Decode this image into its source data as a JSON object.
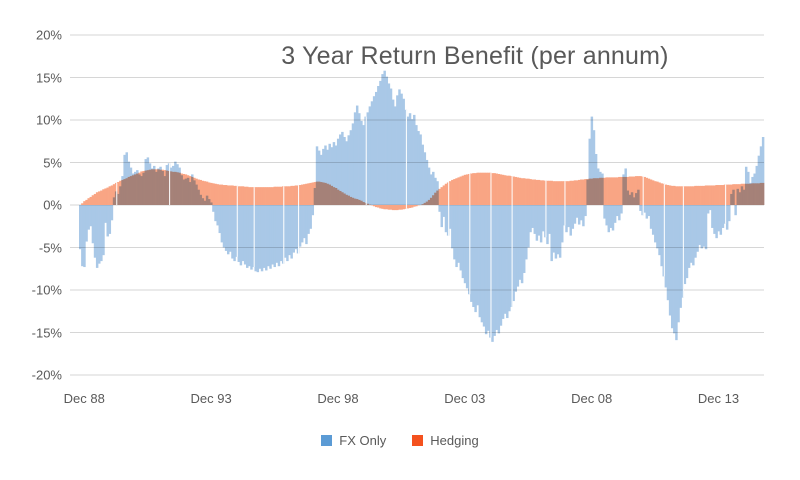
{
  "chart_data": {
    "type": "bar",
    "title": "3 Year Return Benefit (per annum)",
    "xlabel": "",
    "ylabel": "",
    "ylim": [
      -20,
      20
    ],
    "y_step": 5,
    "grid": true,
    "legend_position": "bottom",
    "y_tick_labels": [
      "20%",
      "15%",
      "10%",
      "5%",
      "0%",
      "-5%",
      "-10%",
      "-15%",
      "-20%"
    ],
    "y_tick_values": [
      20,
      15,
      10,
      5,
      0,
      -5,
      -10,
      -15,
      -20
    ],
    "x_tick_labels": [
      "Dec 88",
      "Dec 93",
      "Dec 98",
      "Dec 03",
      "Dec 08",
      "Dec 13"
    ],
    "x_tick_months": [
      2,
      62,
      122,
      182,
      242,
      302
    ],
    "resolution": "monthly",
    "start_month": "Oct 1988",
    "end_month": "Sep 2015",
    "grid_color": "#D6D6D6",
    "text_color": "#595959",
    "gap_months": [
      17,
      42,
      74,
      82,
      96,
      103,
      135,
      154,
      174,
      184,
      194,
      204,
      220,
      229,
      266,
      276,
      285,
      305
    ],
    "legend": [
      {
        "name": "FX Only",
        "color": "#5B9BD5"
      },
      {
        "name": "Hedging",
        "color": "#F4511E"
      }
    ],
    "series": [
      {
        "name": "FX Only",
        "color": "#A9C8E7",
        "values": [
          -5.2,
          -7.2,
          -7.3,
          -4.3,
          -2.9,
          -2.5,
          -4.5,
          -6.2,
          -7.4,
          -6.9,
          -6.6,
          -5.9,
          -2.1,
          -3.7,
          -3.4,
          -1.8,
          0.9,
          1.6,
          1.3,
          2.2,
          3.4,
          5.9,
          6.2,
          5.1,
          4.4,
          3.7,
          3.9,
          4.1,
          3.6,
          3.4,
          3.8,
          5.4,
          5.6,
          4.9,
          4.3,
          4.6,
          3.9,
          4.3,
          4.5,
          4.0,
          3.4,
          4.7,
          4.9,
          4.4,
          4.6,
          5.1,
          4.8,
          4.4,
          3.5,
          3.0,
          3.1,
          3.2,
          2.7,
          3.6,
          2.9,
          2.4,
          1.8,
          1.2,
          0.8,
          0.5,
          1.1,
          0.7,
          0.3,
          -0.8,
          -1.9,
          -2.4,
          -3.3,
          -4.4,
          -5.0,
          -5.4,
          -5.8,
          -5.5,
          -6.3,
          -6.6,
          -6.1,
          -6.7,
          -7.1,
          -6.6,
          -7.0,
          -7.4,
          -7.2,
          -7.6,
          -7.3,
          -7.8,
          -7.9,
          -7.5,
          -7.8,
          -7.4,
          -7.7,
          -7.2,
          -7.5,
          -7.0,
          -7.3,
          -6.8,
          -7.2,
          -6.6,
          -6.9,
          -6.2,
          -6.6,
          -5.9,
          -6.3,
          -5.6,
          -5.2,
          -5.7,
          -4.9,
          -4.4,
          -3.9,
          -4.6,
          -3.4,
          -2.8,
          -1.2,
          2.0,
          6.9,
          6.4,
          5.9,
          6.6,
          7.0,
          6.5,
          7.2,
          6.8,
          7.4,
          7.0,
          7.8,
          8.3,
          8.6,
          8.0,
          7.5,
          8.2,
          8.8,
          9.6,
          10.9,
          11.7,
          10.8,
          9.9,
          9.4,
          10.4,
          10.9,
          11.6,
          12.2,
          12.8,
          13.3,
          14.0,
          14.6,
          15.4,
          15.8,
          15.1,
          14.3,
          13.7,
          12.4,
          11.6,
          12.9,
          13.6,
          13.1,
          12.5,
          11.2,
          10.4,
          10.8,
          10.1,
          10.6,
          9.4,
          8.7,
          8.3,
          7.1,
          6.2,
          5.3,
          4.4,
          3.6,
          3.9,
          3.2,
          2.8,
          -0.8,
          -2.6,
          -1.4,
          -3.2,
          -3.6,
          -2.8,
          -5.1,
          -6.4,
          -7.3,
          -6.8,
          -7.7,
          -8.6,
          -9.2,
          -9.8,
          -10.5,
          -11.4,
          -12.0,
          -12.6,
          -11.8,
          -13.2,
          -13.8,
          -14.3,
          -15.2,
          -14.8,
          -15.6,
          -16.1,
          -15.4,
          -14.7,
          -15.1,
          -14.2,
          -13.4,
          -12.8,
          -13.3,
          -12.5,
          -12.0,
          -11.3,
          -10.2,
          -9.6,
          -8.8,
          -9.2,
          -8.0,
          -6.4,
          -5.0,
          -3.2,
          -2.7,
          -3.4,
          -4.2,
          -3.6,
          -4.4,
          -3.1,
          -3.8,
          -4.6,
          -3.4,
          -6.6,
          -5.6,
          -6.3,
          -5.8,
          -6.2,
          -4.4,
          -2.4,
          -3.2,
          -2.6,
          -3.6,
          -2.8,
          -2.2,
          -1.5,
          -2.3,
          -1.8,
          -2.5,
          -1.3,
          3.0,
          7.8,
          10.4,
          8.8,
          6.0,
          4.3,
          3.9,
          3.7,
          -1.6,
          -2.4,
          -3.2,
          -2.7,
          -3.0,
          -2.1,
          -1.3,
          -1.8,
          -1.0,
          3.6,
          4.3,
          1.7,
          1.2,
          1.5,
          0.9,
          1.4,
          1.8,
          -0.7,
          -1.2,
          -0.9,
          -1.6,
          -1.3,
          -2.8,
          -3.5,
          -4.4,
          -5.1,
          -5.9,
          -7.2,
          -8.4,
          -9.7,
          -11.2,
          -13.0,
          -14.5,
          -15.1,
          -15.9,
          -13.8,
          -12.1,
          -10.9,
          -9.3,
          -8.6,
          -7.4,
          -6.8,
          -7.1,
          -6.2,
          -5.5,
          -4.7,
          -5.1,
          -4.9,
          -5.2,
          -1.0,
          -0.6,
          -2.7,
          -3.4,
          -3.9,
          -3.1,
          -3.5,
          -2.7,
          -2.2,
          -2.9,
          -1.9,
          1.3,
          1.8,
          -1.2,
          1.9,
          1.5,
          2.2,
          1.8,
          4.5,
          3.9,
          2.6,
          3.3,
          3.7,
          4.6,
          5.8,
          6.9,
          8.0
        ]
      },
      {
        "name": "Hedging",
        "color": "#F9A584",
        "values": [
          0.0,
          0.2,
          0.45,
          0.6,
          0.8,
          0.95,
          1.15,
          1.3,
          1.5,
          1.6,
          1.7,
          1.85,
          1.95,
          2.05,
          2.2,
          2.3,
          2.45,
          2.6,
          2.7,
          2.85,
          2.95,
          3.05,
          3.15,
          3.3,
          3.4,
          3.5,
          3.6,
          3.7,
          3.8,
          3.95,
          4.0,
          4.05,
          4.1,
          4.15,
          4.2,
          4.2,
          4.2,
          4.2,
          4.15,
          4.15,
          4.1,
          4.05,
          4.0,
          3.95,
          3.9,
          3.9,
          3.85,
          3.8,
          3.7,
          3.65,
          3.6,
          3.5,
          3.4,
          3.3,
          3.2,
          3.1,
          3.0,
          2.95,
          2.85,
          2.8,
          2.75,
          2.65,
          2.6,
          2.55,
          2.5,
          2.45,
          2.4,
          2.4,
          2.35,
          2.35,
          2.3,
          2.3,
          2.3,
          2.25,
          2.25,
          2.2,
          2.2,
          2.2,
          2.15,
          2.15,
          2.1,
          2.1,
          2.1,
          2.1,
          2.1,
          2.1,
          2.1,
          2.1,
          2.1,
          2.1,
          2.1,
          2.1,
          2.15,
          2.15,
          2.15,
          2.15,
          2.2,
          2.2,
          2.2,
          2.2,
          2.25,
          2.25,
          2.3,
          2.3,
          2.35,
          2.4,
          2.45,
          2.5,
          2.55,
          2.6,
          2.65,
          2.7,
          2.75,
          2.75,
          2.7,
          2.65,
          2.6,
          2.5,
          2.4,
          2.25,
          2.1,
          2.0,
          1.8,
          1.65,
          1.5,
          1.35,
          1.2,
          1.1,
          0.95,
          0.85,
          0.75,
          0.7,
          0.6,
          0.5,
          0.35,
          0.25,
          0.15,
          0.05,
          -0.05,
          -0.15,
          -0.25,
          -0.3,
          -0.4,
          -0.45,
          -0.5,
          -0.5,
          -0.55,
          -0.55,
          -0.6,
          -0.6,
          -0.6,
          -0.55,
          -0.55,
          -0.5,
          -0.45,
          -0.4,
          -0.35,
          -0.3,
          -0.2,
          -0.15,
          -0.05,
          0.0,
          0.1,
          0.25,
          0.4,
          0.6,
          0.85,
          1.15,
          1.45,
          1.7,
          1.9,
          2.1,
          2.3,
          2.5,
          2.65,
          2.8,
          2.95,
          3.05,
          3.15,
          3.25,
          3.35,
          3.45,
          3.55,
          3.6,
          3.65,
          3.7,
          3.75,
          3.75,
          3.8,
          3.8,
          3.8,
          3.8,
          3.8,
          3.8,
          3.8,
          3.75,
          3.75,
          3.7,
          3.65,
          3.6,
          3.55,
          3.5,
          3.45,
          3.45,
          3.4,
          3.35,
          3.3,
          3.25,
          3.2,
          3.15,
          3.15,
          3.1,
          3.1,
          3.05,
          3.0,
          3.0,
          2.95,
          2.95,
          2.9,
          2.9,
          2.85,
          2.85,
          2.85,
          2.85,
          2.8,
          2.8,
          2.8,
          2.8,
          2.8,
          2.8,
          2.8,
          2.8,
          2.85,
          2.85,
          2.9,
          2.9,
          2.95,
          3.0,
          3.0,
          3.05,
          3.05,
          3.1,
          3.1,
          3.15,
          3.15,
          3.15,
          3.2,
          3.2,
          3.2,
          3.25,
          3.25,
          3.25,
          3.25,
          3.25,
          3.25,
          3.3,
          3.3,
          3.3,
          3.3,
          3.3,
          3.35,
          3.35,
          3.35,
          3.4,
          3.4,
          3.4,
          3.35,
          3.3,
          3.2,
          3.1,
          3.0,
          2.9,
          2.8,
          2.75,
          2.65,
          2.55,
          2.5,
          2.4,
          2.35,
          2.3,
          2.25,
          2.25,
          2.2,
          2.2,
          2.2,
          2.2,
          2.2,
          2.2,
          2.2,
          2.2,
          2.2,
          2.25,
          2.25,
          2.25,
          2.25,
          2.25,
          2.3,
          2.3,
          2.3,
          2.3,
          2.3,
          2.35,
          2.35,
          2.35,
          2.35,
          2.4,
          2.4,
          2.4,
          2.4,
          2.45,
          2.45,
          2.45,
          2.45,
          2.5,
          2.5,
          2.5,
          2.5,
          2.5,
          2.55,
          2.55,
          2.55,
          2.55,
          2.6,
          2.6
        ]
      }
    ]
  }
}
